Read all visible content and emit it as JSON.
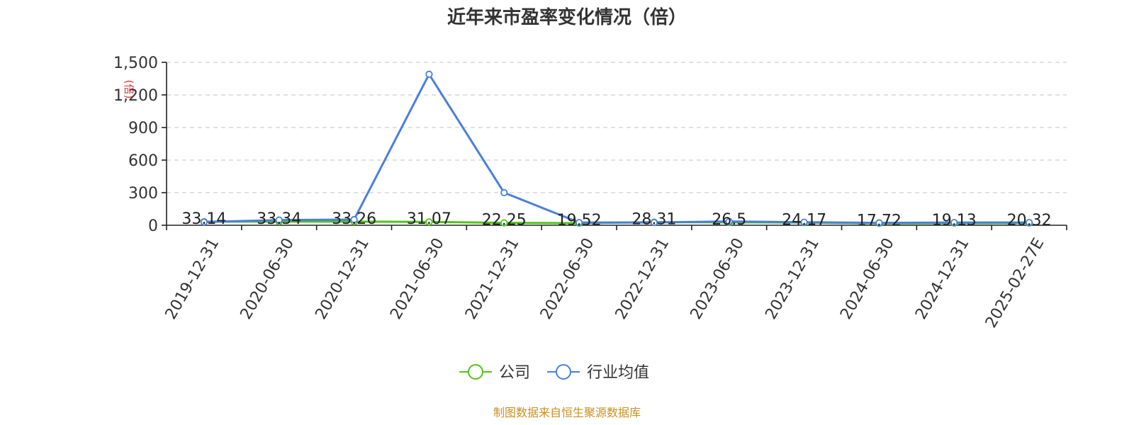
{
  "chart_data": {
    "type": "line",
    "title": "近年来市盈率变化情况（倍）",
    "ylabel": "(倍)",
    "ylim": [
      0,
      1500
    ],
    "yticks": [
      0,
      300,
      600,
      900,
      1200,
      1500
    ],
    "ytick_labels": [
      "0",
      "300",
      "600",
      "900",
      "1,200",
      "1,500"
    ],
    "categories": [
      "2019-12-31",
      "2020-06-30",
      "2020-12-31",
      "2021-06-30",
      "2021-12-31",
      "2022-06-30",
      "2022-12-31",
      "2023-06-30",
      "2023-12-31",
      "2024-06-30",
      "2024-12-31",
      "2025-02-27E"
    ],
    "series": [
      {
        "name": "公司",
        "color": "#52c41a",
        "values": [
          33.14,
          33.34,
          33.26,
          31.07,
          22.25,
          19.52,
          28.31,
          26.5,
          24.17,
          17.72,
          19.13,
          20.32
        ],
        "labels": [
          "33.14",
          "33.34",
          "33.26",
          "31.07",
          "22.25",
          "19.52",
          "28.31",
          "26.5",
          "24.17",
          "17.72",
          "19.13",
          "20.32"
        ]
      },
      {
        "name": "行业均值",
        "color": "#4a7fdc",
        "values": [
          30,
          48,
          52,
          1390,
          300,
          25,
          25,
          35,
          28,
          22,
          25,
          25
        ]
      }
    ],
    "grid": true,
    "legend_position": "bottom-center",
    "source": "制图数据来自恒生聚源数据库"
  }
}
